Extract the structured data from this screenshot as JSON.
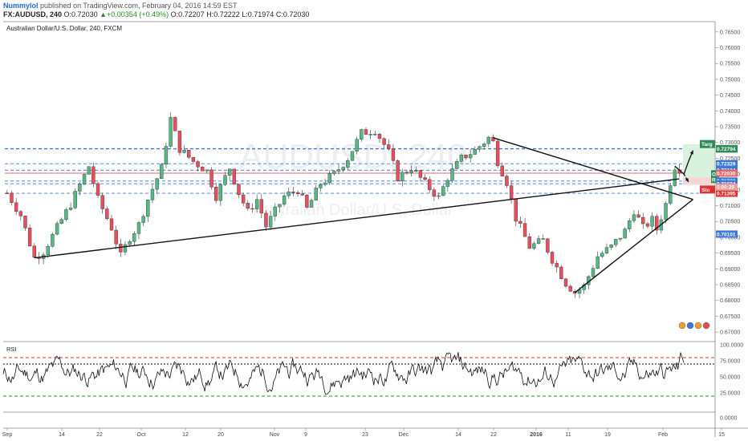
{
  "header": {
    "user": "Nummylol",
    "published": "published on TradingView.com, February 04, 2016 14:59 EST",
    "symbol_line": "FX:AUDUSD, 240",
    "open_label": "O:",
    "open": "0.72030",
    "change": "+0.00354 (+0.49%)",
    "o_label": "O:",
    "o": "0.72207",
    "h_label": "H:",
    "h": "0.72222",
    "l_label": "L:",
    "l": "0.71974",
    "c_label": "C:",
    "c": "0.72030"
  },
  "chart_data": {
    "type": "candlestick",
    "title": "Australian Dollar/U.S. Dollar, 240, FXCM",
    "watermark_symbol": "AUDUSD, 240",
    "watermark_name": "Australian Dollar/U.S. Dollar",
    "y_ticks": [
      "0.76500",
      "0.76000",
      "0.75500",
      "0.75000",
      "0.74500",
      "0.74000",
      "0.73500",
      "0.73000",
      "0.72500",
      "0.72000",
      "0.71500",
      "0.71000",
      "0.70500",
      "0.70000",
      "0.69500",
      "0.69000",
      "0.68500",
      "0.68000",
      "0.67500",
      "0.67000"
    ],
    "ylim": [
      0.6675,
      0.768
    ],
    "x_labels": [
      "Sep",
      "14",
      "22",
      "Oct",
      "12",
      "20",
      "Nov",
      "9",
      "23",
      "Dec",
      "14",
      "22",
      "2016",
      "11",
      "19",
      "Feb",
      "15"
    ],
    "path": [
      [
        0,
        0.714
      ],
      [
        3,
        0.707
      ],
      [
        6,
        0.6935
      ],
      [
        8,
        0.6955
      ],
      [
        12,
        0.7055
      ],
      [
        14,
        0.7105
      ],
      [
        18,
        0.7225
      ],
      [
        20,
        0.712
      ],
      [
        23,
        0.703
      ],
      [
        25,
        0.694
      ],
      [
        27,
        0.7
      ],
      [
        29,
        0.704
      ],
      [
        31,
        0.712
      ],
      [
        34,
        0.722
      ],
      [
        36,
        0.7375
      ],
      [
        38,
        0.728
      ],
      [
        41,
        0.724
      ],
      [
        44,
        0.721
      ],
      [
        46,
        0.713
      ],
      [
        49,
        0.722
      ],
      [
        51,
        0.714
      ],
      [
        53,
        0.708
      ],
      [
        55,
        0.712
      ],
      [
        57,
        0.7035
      ],
      [
        61,
        0.713
      ],
      [
        64,
        0.715
      ],
      [
        66,
        0.709
      ],
      [
        69,
        0.717
      ],
      [
        72,
        0.72
      ],
      [
        75,
        0.725
      ],
      [
        78,
        0.733
      ],
      [
        81,
        0.734
      ],
      [
        84,
        0.727
      ],
      [
        86,
        0.719
      ],
      [
        89,
        0.722
      ],
      [
        92,
        0.717
      ],
      [
        95,
        0.7125
      ],
      [
        97,
        0.719
      ],
      [
        100,
        0.725
      ],
      [
        103,
        0.7275
      ],
      [
        106,
        0.7315
      ],
      [
        107,
        0.73
      ],
      [
        108,
        0.724
      ],
      [
        110,
        0.7175
      ],
      [
        112,
        0.706
      ],
      [
        115,
        0.697
      ],
      [
        118,
        0.699
      ],
      [
        120,
        0.693
      ],
      [
        123,
        0.6855
      ],
      [
        125,
        0.6825
      ],
      [
        127,
        0.6845
      ],
      [
        130,
        0.694
      ],
      [
        133,
        0.697
      ],
      [
        136,
        0.702
      ],
      [
        138,
        0.7085
      ],
      [
        140,
        0.703
      ],
      [
        142,
        0.7055
      ],
      [
        143,
        0.7025
      ],
      [
        145,
        0.7105
      ],
      [
        146,
        0.7175
      ],
      [
        147,
        0.7225
      ],
      [
        148,
        0.7203
      ]
    ],
    "n_candles": 149,
    "horizontal_levels": [
      {
        "value": 0.72806,
        "label": "0.72806",
        "color": "#2e8b57",
        "style": "dashed-blue"
      },
      {
        "value": 0.72794,
        "label": "0.72794",
        "color": "#2e8b57",
        "style": "dashed-blue"
      },
      {
        "value": 0.72329,
        "label": "0.72329",
        "color": "#3c78d8",
        "style": "dashed-blue"
      },
      {
        "value": 0.72124,
        "label": "0.72124",
        "color": "#3c78d8",
        "style": "dashed-blue"
      },
      {
        "value": 0.7203,
        "label": "0.72030",
        "color": "#e26a6a",
        "style": "solid-red"
      },
      {
        "value": 0.7178,
        "label": "0.71780",
        "color": "#3c78d8",
        "style": "dashed-blue"
      },
      {
        "value": 0.71694,
        "label": "0.71694",
        "color": "#3c78d8",
        "style": "dashed-blue"
      },
      {
        "value": 0.71394,
        "label": "0.71394",
        "color": "#3c78d8",
        "style": "dashed-blue"
      },
      {
        "value": 0.71395,
        "label": "0.71395",
        "color": "#e03030",
        "style": "none"
      },
      {
        "value": 0.70101,
        "label": "0.70101",
        "color": "#3c78d8",
        "style": "none"
      }
    ],
    "position_tool": {
      "target_label": "Targ",
      "open_label": "O",
      "risk_label": "Ris",
      "stop_label": "Sto",
      "entry_value_label": "0.00:20",
      "target": 0.7295,
      "entry": 0.71895,
      "stop": 0.71665
    },
    "trendlines": [
      {
        "from": [
          6,
          0.6935
        ],
        "to": [
          148,
          0.7185
        ]
      },
      {
        "from": [
          107,
          0.7315
        ],
        "to": [
          151,
          0.712
        ]
      },
      {
        "from": [
          125,
          0.6825
        ],
        "to": [
          151,
          0.712
        ]
      }
    ],
    "projection_arrows": [
      {
        "points": [
          [
            147,
            0.7225
          ],
          [
            149,
            0.72
          ],
          [
            150,
            0.724
          ],
          [
            151,
            0.7275
          ]
        ]
      },
      {
        "points": [
          [
            149,
            0.72
          ],
          [
            150,
            0.7175
          ]
        ]
      }
    ],
    "rsi": {
      "label": "RSI",
      "ticks": [
        "100.0000",
        "75.0000",
        "50.0000",
        "25.0000",
        "0.0000"
      ],
      "upper": 80,
      "mid": 70,
      "lower": 20,
      "last_value": 72
    }
  },
  "colors": {
    "up": "#53b987",
    "down": "#eb4d5c",
    "blue_level": "#3c78d8",
    "red_level": "#e26a6a",
    "rsi_upper": "#e03030",
    "rsi_lower": "#2e8b2e",
    "trend": "#111111",
    "target_fill": "#d9f2df",
    "stop_fill": "#f8d5d5"
  }
}
